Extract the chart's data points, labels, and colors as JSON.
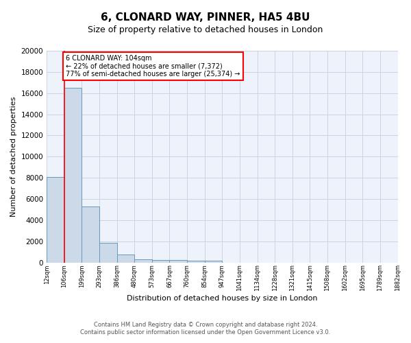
{
  "title1": "6, CLONARD WAY, PINNER, HA5 4BU",
  "title2": "Size of property relative to detached houses in London",
  "xlabel": "Distribution of detached houses by size in London",
  "ylabel": "Number of detached properties",
  "bin_heights": [
    8100,
    16500,
    5300,
    1850,
    750,
    300,
    250,
    200,
    175,
    150,
    0,
    0,
    0,
    0,
    0,
    0,
    0,
    0,
    0,
    0
  ],
  "bar_color": "#ccd9e8",
  "bar_edge_color": "#6699bb",
  "property_bar_index": 1,
  "property_line_color": "red",
  "ylim": [
    0,
    20000
  ],
  "yticks": [
    0,
    2000,
    4000,
    6000,
    8000,
    10000,
    12000,
    14000,
    16000,
    18000,
    20000
  ],
  "annotation_title": "6 CLONARD WAY: 104sqm",
  "annotation_line1": "← 22% of detached houses are smaller (7,372)",
  "annotation_line2": "77% of semi-detached houses are larger (25,374) →",
  "annotation_box_color": "white",
  "annotation_border_color": "red",
  "footnote1": "Contains HM Land Registry data © Crown copyright and database right 2024.",
  "footnote2": "Contains public sector information licensed under the Open Government Licence v3.0.",
  "bg_color": "#eef2fb",
  "grid_color": "#c8cede",
  "title1_fontsize": 11,
  "title2_fontsize": 9,
  "xlabel_fontsize": 8,
  "ylabel_fontsize": 8,
  "tick_labels": [
    "12sqm",
    "106sqm",
    "199sqm",
    "293sqm",
    "386sqm",
    "480sqm",
    "573sqm",
    "667sqm",
    "760sqm",
    "854sqm",
    "947sqm",
    "1041sqm",
    "1134sqm",
    "1228sqm",
    "1321sqm",
    "1415sqm",
    "1508sqm",
    "1602sqm",
    "1695sqm",
    "1789sqm",
    "1882sqm"
  ]
}
